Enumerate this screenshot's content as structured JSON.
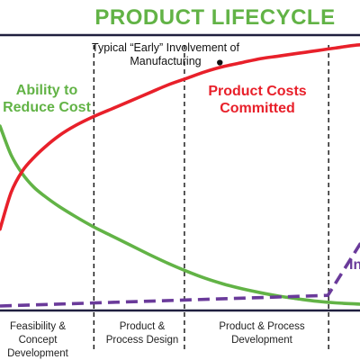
{
  "colors": {
    "green": "#62b346",
    "red": "#e8202a",
    "purple": "#6a3a9a",
    "frame": "#1f1f3f",
    "text": "#222222"
  },
  "chart_data": {
    "type": "line",
    "title": "PRODUCT LIFECYCLE",
    "xlabel": "",
    "ylabel": "",
    "xlim": [
      0,
      100
    ],
    "ylim": [
      0,
      100
    ],
    "grid": false,
    "legend": "none",
    "phases": [
      {
        "label": [
          "Feasibility & Concept",
          "Development"
        ],
        "x_start": 0,
        "x_end": 25.2
      },
      {
        "label": [
          "Product &",
          "Process Design"
        ],
        "x_start": 25.2,
        "x_end": 49.5
      },
      {
        "label": [
          "Product & Process",
          "Development"
        ],
        "x_start": 49.5,
        "x_end": 88.2
      }
    ],
    "series": [
      {
        "name": "Product Costs Committed",
        "label_lines": [
          "Product Costs",
          "Committed"
        ],
        "color": "#e8202a",
        "x": [
          0,
          3,
          6,
          9,
          12,
          16,
          20,
          25,
          30,
          35,
          40,
          45,
          50,
          55,
          60,
          65,
          70,
          75,
          80,
          85,
          90,
          95,
          100
        ],
        "y": [
          29,
          43,
          51,
          56,
          60,
          64.5,
          68,
          71.5,
          74.5,
          77.5,
          80.5,
          83.5,
          86,
          88.5,
          90.5,
          92,
          93.5,
          94.5,
          95.5,
          96.5,
          97.5,
          98.5,
          99
        ]
      },
      {
        "name": "Ability to Reduce Cost",
        "label_lines": [
          "Ability to",
          "Reduce Cost"
        ],
        "color": "#62b346",
        "x": [
          0,
          3,
          6,
          9,
          12,
          16,
          20,
          25,
          30,
          35,
          40,
          45,
          50,
          55,
          60,
          65,
          70,
          75,
          80,
          85,
          90,
          95,
          100
        ],
        "y": [
          68,
          57,
          50,
          45,
          41.5,
          37.5,
          34,
          30,
          26.5,
          23,
          19.5,
          16.2,
          13.2,
          10.5,
          8.3,
          6.5,
          5,
          3.7,
          2.7,
          1.8,
          1.2,
          0.8,
          0.5
        ]
      },
      {
        "name": "Increase",
        "label_lines": [
          "In"
        ],
        "color": "#6a3a9a",
        "dashed": true,
        "x": [
          0,
          88,
          100
        ],
        "y": [
          0,
          4,
          31
        ]
      }
    ],
    "annotations": [
      {
        "text": [
          "Typical “Early” Involvement of",
          "Manufacturing"
        ],
        "x": 59,
        "y": 92
      }
    ],
    "vlines": [
      25.2,
      49.5,
      88.2
    ]
  }
}
